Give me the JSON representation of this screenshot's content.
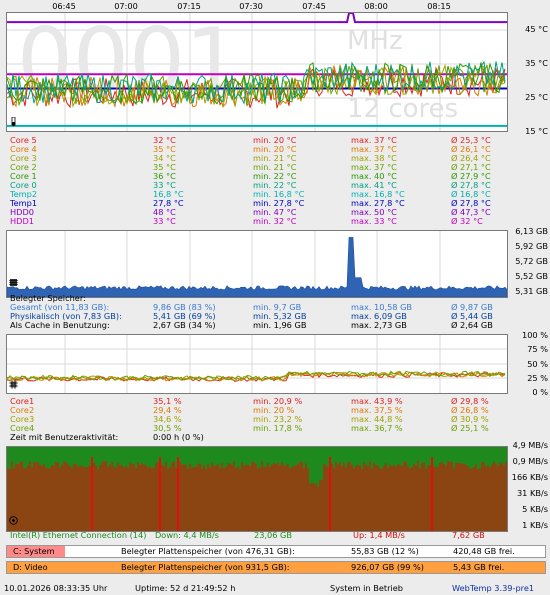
{
  "timeline": {
    "labels": [
      "06:45",
      "07:00",
      "07:15",
      "07:30",
      "07:45",
      "08:00",
      "08:15"
    ]
  },
  "temp_panel": {
    "watermark_big": "0001",
    "watermark_unit": "MHz",
    "watermark_cores": "12 cores",
    "y_labels": [
      "45 °C",
      "35 °C",
      "25 °C",
      "15 °C"
    ],
    "thermo_icon": "thermometer-icon"
  },
  "temp_rows": [
    {
      "name": "Core 5",
      "cur": "32 °C",
      "min": "min. 20 °C",
      "max": "max. 37 °C",
      "avg": "Ø 25,3 °C",
      "color": "#e02020"
    },
    {
      "name": "Core 4",
      "cur": "35 °C",
      "min": "min. 20 °C",
      "max": "max. 37 °C",
      "avg": "Ø 26,1 °C",
      "color": "#e07a00"
    },
    {
      "name": "Core 3",
      "cur": "34 °C",
      "min": "min. 21 °C",
      "max": "max. 38 °C",
      "avg": "Ø 26,4 °C",
      "color": "#a0a000"
    },
    {
      "name": "Core 2",
      "cur": "35 °C",
      "min": "min. 21 °C",
      "max": "max. 37 °C",
      "avg": "Ø 27,1 °C",
      "color": "#6aa000"
    },
    {
      "name": "Core 1",
      "cur": "36 °C",
      "min": "min. 22 °C",
      "max": "max. 40 °C",
      "avg": "Ø 27,9 °C",
      "color": "#2a9a00"
    },
    {
      "name": "Core 0",
      "cur": "33 °C",
      "min": "min. 22 °C",
      "max": "max. 41 °C",
      "avg": "Ø 27,8 °C",
      "color": "#00a080"
    },
    {
      "name": "Temp2",
      "cur": "16,8 °C",
      "min": "min. 16,8 °C",
      "max": "max. 16,8 °C",
      "avg": "Ø 16,8 °C",
      "color": "#00b0b0"
    },
    {
      "name": "Temp1",
      "cur": "27,8 °C",
      "min": "min. 27,8 °C",
      "max": "max. 27,8 °C",
      "avg": "Ø 27,8 °C",
      "color": "#0000c0"
    },
    {
      "name": "HDD0",
      "cur": "48 °C",
      "min": "min. 47 °C",
      "max": "max. 50 °C",
      "avg": "Ø 47,3 °C",
      "color": "#8000c0"
    },
    {
      "name": "HDD1",
      "cur": "33 °C",
      "min": "min. 32 °C",
      "max": "max. 33 °C",
      "avg": "Ø 32 °C",
      "color": "#c000c0"
    }
  ],
  "mem_panel": {
    "y_labels": [
      "6,13 GB",
      "5,92 GB",
      "5,72 GB",
      "5,52 GB",
      "5,31 GB"
    ],
    "chip_icon": "memory-chip-icon"
  },
  "mem_title": "Belegter Speicher:",
  "mem_rows": [
    {
      "name": "Gesamt (von 11,83 GB):",
      "cur": "9,86 GB (83 %)",
      "min": "min. 9,7 GB",
      "max": "max. 10,58 GB",
      "avg": "Ø 9,87 GB",
      "color": "#3a7ad0"
    },
    {
      "name": "Physikalisch (von 7,83 GB):",
      "cur": "5,41 GB (69 %)",
      "min": "min. 5,32 GB",
      "max": "max. 6,09 GB",
      "avg": "Ø 5,44 GB",
      "color": "#0040a0"
    },
    {
      "name": "Als Cache in Benutzung:",
      "cur": "2,67 GB (34 %)",
      "min": "min. 1,96 GB",
      "max": "max. 2,73 GB",
      "avg": "Ø 2,64 GB",
      "color": "#000000"
    }
  ],
  "cpu_panel": {
    "y_labels": [
      "100 %",
      "75 %",
      "50 %",
      "25 %",
      "0 %"
    ],
    "cpu_icon": "cpu-chip-icon"
  },
  "cpu_rows": [
    {
      "name": "Core1",
      "cur": "35,1 %",
      "min": "min. 20,9 %",
      "max": "max. 43,9 %",
      "avg": "Ø 29,8 %",
      "color": "#e02020"
    },
    {
      "name": "Core2",
      "cur": "29,4 %",
      "min": "min. 20 %",
      "max": "max. 37,5 %",
      "avg": "Ø 26,8 %",
      "color": "#e07a00"
    },
    {
      "name": "Core3",
      "cur": "34,6 %",
      "min": "min. 23,2 %",
      "max": "max. 44,8 %",
      "avg": "Ø 30,9 %",
      "color": "#a0a000"
    },
    {
      "name": "Core4",
      "cur": "30,5 %",
      "min": "min. 17,8 %",
      "max": "max. 36,7 %",
      "avg": "Ø 25,1 %",
      "color": "#6aa000"
    }
  ],
  "user_activity": {
    "label": "Zeit mit Benutzeraktivität:",
    "value": "0:00 h (0 %)"
  },
  "net_panel": {
    "y_labels": [
      "4,9 MB/s",
      "0,9 MB/s",
      "166 KB/s",
      "31 KB/s",
      "5 KB/s",
      "1 KB/s"
    ],
    "net_icon": "network-icon"
  },
  "net_row": {
    "name": "Intel(R) Ethernet Connection (14)",
    "down": "Down: 4,4 MB/s",
    "down_total": "23,06 GB",
    "up": "Up: 1,4 MB/s",
    "up_total": "7,62 GB"
  },
  "disks": [
    {
      "drive": "C: System",
      "label": "Belegter Plattenspeicher (von 476,31 GB):",
      "used": "55,83 GB (12 %)",
      "free": "420,48 GB frei.",
      "badge": "#ff8a8a",
      "bar": "#ffffff"
    },
    {
      "drive": "D: Video",
      "label": "Belegter Plattenspeicher (von 931,5 GB):",
      "used": "926,07 GB (99 %)",
      "free": "5,43 GB frei.",
      "badge": "#ff9a3a",
      "bar": "#ffa040"
    }
  ],
  "status": {
    "datetime": "10.01.2026 08:33:35 Uhr",
    "uptime": "Uptime: 52 d 21:49:52 h",
    "state": "System in Betrieb",
    "version": "WebTemp 3.39-pre1"
  }
}
